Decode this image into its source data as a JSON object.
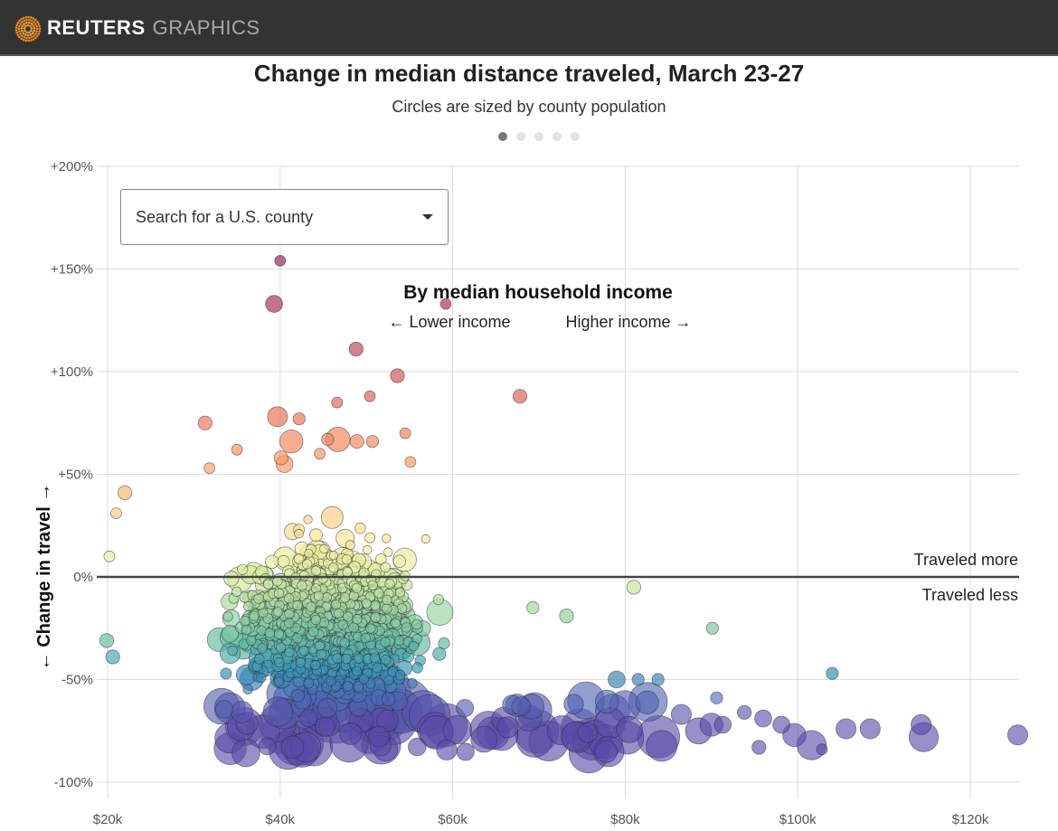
{
  "header": {
    "brand_primary": "REUTERS",
    "brand_secondary": "GRAPHICS",
    "logo_icon": "reuters-dot-ring-logo"
  },
  "title": "Change in median distance traveled, March 23-27",
  "subtitle": "Circles are sized by county population",
  "pager": {
    "count": 5,
    "active_index": 0
  },
  "search": {
    "placeholder": "Search for a U.S. county",
    "icon": "caret-down-icon"
  },
  "annotations": {
    "heading": "By median household income",
    "lower": "← Lower income",
    "higher": "Higher income →",
    "traveled_more": "Traveled more",
    "traveled_less": "Traveled less"
  },
  "colors": {
    "header_bg": "#333333",
    "zero_line": "#444444",
    "grid": "#dddddd",
    "scale": [
      "#9e2a64",
      "#c4495f",
      "#ee7a5d",
      "#fdb36b",
      "#fde49a",
      "#e6f3a2",
      "#b5df9d",
      "#6fc2a3",
      "#3a98b8",
      "#4b6cb5",
      "#5b4aa8"
    ]
  },
  "chart_data": {
    "type": "scatter",
    "title": "Change in median distance traveled, March 23-27",
    "subtitle": "Circles are sized by county population",
    "xlabel": "Median household income",
    "ylabel": "← Change in travel →",
    "xlim": [
      19.5,
      126
    ],
    "ylim": [
      -105,
      200
    ],
    "x_ticks": [
      20,
      40,
      60,
      80,
      100,
      120
    ],
    "x_tick_labels": [
      "$20k",
      "$40k",
      "$60k",
      "$80k",
      "$100k",
      "$120k"
    ],
    "y_ticks": [
      200,
      150,
      100,
      50,
      0,
      -50,
      -100
    ],
    "y_tick_labels": [
      "+200%",
      "+150%",
      "+100%",
      "+50%",
      "0%",
      "-50%",
      "-100%"
    ],
    "grid": true,
    "color_encodes": "y value (change in travel)",
    "size_encodes": "county population",
    "points_listed": [
      {
        "x": 40.0,
        "y": 154,
        "size": 1
      },
      {
        "x": 39.3,
        "y": 133,
        "size": 2
      },
      {
        "x": 59.2,
        "y": 133,
        "size": 1
      },
      {
        "x": 48.8,
        "y": 111,
        "size": 1.5
      },
      {
        "x": 53.6,
        "y": 98,
        "size": 1.5
      },
      {
        "x": 50.4,
        "y": 88,
        "size": 1
      },
      {
        "x": 67.8,
        "y": 88,
        "size": 1.5
      },
      {
        "x": 46.6,
        "y": 85,
        "size": 1
      },
      {
        "x": 39.7,
        "y": 78,
        "size": 2.5
      },
      {
        "x": 31.3,
        "y": 75,
        "size": 1.5
      },
      {
        "x": 42.2,
        "y": 77,
        "size": 1.2
      },
      {
        "x": 45.5,
        "y": 67,
        "size": 1.2
      },
      {
        "x": 54.5,
        "y": 70,
        "size": 1
      },
      {
        "x": 41.3,
        "y": 66,
        "size": 3
      },
      {
        "x": 46.7,
        "y": 67,
        "size": 3.2
      },
      {
        "x": 48.9,
        "y": 66,
        "size": 1.5
      },
      {
        "x": 50.7,
        "y": 66,
        "size": 1.2
      },
      {
        "x": 44.6,
        "y": 60,
        "size": 1
      },
      {
        "x": 35.0,
        "y": 62,
        "size": 1
      },
      {
        "x": 40.1,
        "y": 58,
        "size": 1.5
      },
      {
        "x": 40.5,
        "y": 55,
        "size": 2
      },
      {
        "x": 55.1,
        "y": 56,
        "size": 1
      },
      {
        "x": 31.8,
        "y": 53,
        "size": 1
      },
      {
        "x": 22.0,
        "y": 41,
        "size": 1.5
      },
      {
        "x": 21.0,
        "y": 31,
        "size": 1
      },
      {
        "x": 20.2,
        "y": 10,
        "size": 1
      },
      {
        "x": 19.9,
        "y": -31,
        "size": 1.5
      },
      {
        "x": 20.6,
        "y": -39,
        "size": 1.5
      },
      {
        "x": 81.0,
        "y": -5,
        "size": 1.5
      },
      {
        "x": 90.1,
        "y": -25,
        "size": 1.2
      },
      {
        "x": 104.0,
        "y": -47,
        "size": 1.2
      },
      {
        "x": 69.3,
        "y": -15,
        "size": 1.2
      },
      {
        "x": 73.2,
        "y": -19,
        "size": 1.5
      },
      {
        "x": 79.0,
        "y": -50,
        "size": 2
      },
      {
        "x": 81.5,
        "y": -50,
        "size": 1.2
      },
      {
        "x": 83.8,
        "y": -50,
        "size": 1.2
      },
      {
        "x": 86.5,
        "y": -67,
        "size": 2.5
      },
      {
        "x": 88.5,
        "y": -75,
        "size": 3.5
      },
      {
        "x": 90.0,
        "y": -72,
        "size": 3
      },
      {
        "x": 91.3,
        "y": -72,
        "size": 2
      },
      {
        "x": 93.8,
        "y": -66,
        "size": 1.5
      },
      {
        "x": 96.0,
        "y": -69,
        "size": 2
      },
      {
        "x": 98.1,
        "y": -72,
        "size": 2
      },
      {
        "x": 99.6,
        "y": -77,
        "size": 3
      },
      {
        "x": 101.6,
        "y": -82,
        "size": 4
      },
      {
        "x": 102.8,
        "y": -84,
        "size": 1
      },
      {
        "x": 95.5,
        "y": -83,
        "size": 1.5
      },
      {
        "x": 105.6,
        "y": -74,
        "size": 2.5
      },
      {
        "x": 108.4,
        "y": -74,
        "size": 2.5
      },
      {
        "x": 114.3,
        "y": -72,
        "size": 2.5
      },
      {
        "x": 114.6,
        "y": -78,
        "size": 4
      },
      {
        "x": 125.5,
        "y": -77,
        "size": 2.5
      },
      {
        "x": 90.6,
        "y": -59,
        "size": 1.2
      }
    ],
    "cloud_summary": {
      "description": "Dense cluster of ~1500 counties centered near $45k income and -25% change; spread wider downward; largest (most populous) circles sit around -60% to -85%",
      "count": 1500,
      "x_center": 46,
      "x_spread": 8.5,
      "y_center": -22,
      "y_spread": 28
    }
  }
}
